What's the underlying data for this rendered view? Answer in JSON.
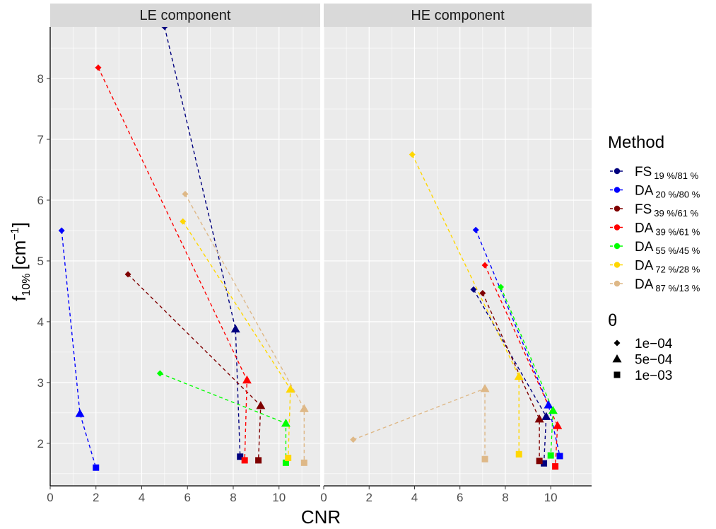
{
  "chart_data": {
    "type": "scatter",
    "x_label": "CNR",
    "y_label": "f",
    "y_label_sub": "10%",
    "y_label_unit": "[cm",
    "y_label_sup": "−1",
    "y_label_close": "]",
    "x_range": [
      0,
      11.8
    ],
    "y_range": [
      1.3,
      8.85
    ],
    "x_ticks": [
      0,
      2,
      4,
      6,
      8,
      10
    ],
    "y_ticks": [
      2,
      3,
      4,
      5,
      6,
      7,
      8
    ],
    "grid": true,
    "legend_placement": "right",
    "panels": [
      {
        "title": "LE component",
        "series": [
          {
            "method": "FS",
            "sub": "19 %/81 %",
            "color": "#00007f",
            "points": [
              {
                "theta": "1e-04",
                "x": 5.0,
                "y": 8.85
              },
              {
                "theta": "5e-04",
                "x": 8.1,
                "y": 3.88
              },
              {
                "theta": "1e-03",
                "x": 8.3,
                "y": 1.78
              }
            ]
          },
          {
            "method": "DA",
            "sub": "20 %/80 %",
            "color": "#0000ff",
            "points": [
              {
                "theta": "1e-04",
                "x": 0.5,
                "y": 5.5
              },
              {
                "theta": "5e-04",
                "x": 1.3,
                "y": 2.49
              },
              {
                "theta": "1e-03",
                "x": 2.0,
                "y": 1.6
              }
            ]
          },
          {
            "method": "FS",
            "sub": "39 %/61 %",
            "color": "#7f0000",
            "points": [
              {
                "theta": "1e-04",
                "x": 3.4,
                "y": 4.78
              },
              {
                "theta": "5e-04",
                "x": 9.2,
                "y": 2.62
              },
              {
                "theta": "1e-03",
                "x": 9.1,
                "y": 1.72
              }
            ]
          },
          {
            "method": "DA",
            "sub": "39 %/61 %",
            "color": "#ff0000",
            "points": [
              {
                "theta": "1e-04",
                "x": 2.1,
                "y": 8.18
              },
              {
                "theta": "5e-04",
                "x": 8.6,
                "y": 3.04
              },
              {
                "theta": "1e-03",
                "x": 8.5,
                "y": 1.72
              }
            ]
          },
          {
            "method": "DA",
            "sub": "55 %/45 %",
            "color": "#00ff00",
            "points": [
              {
                "theta": "1e-04",
                "x": 4.8,
                "y": 3.15
              },
              {
                "theta": "5e-04",
                "x": 10.3,
                "y": 2.33
              },
              {
                "theta": "1e-03",
                "x": 10.3,
                "y": 1.68
              }
            ]
          },
          {
            "method": "DA",
            "sub": "72 %/28 %",
            "color": "#ffd700",
            "points": [
              {
                "theta": "1e-04",
                "x": 5.8,
                "y": 5.65
              },
              {
                "theta": "5e-04",
                "x": 10.5,
                "y": 2.89
              },
              {
                "theta": "1e-03",
                "x": 10.4,
                "y": 1.76
              }
            ]
          },
          {
            "method": "DA",
            "sub": "87 %/13 %",
            "color": "#deb887",
            "points": [
              {
                "theta": "1e-04",
                "x": 5.9,
                "y": 6.1
              },
              {
                "theta": "5e-04",
                "x": 11.1,
                "y": 2.57
              },
              {
                "theta": "1e-03",
                "x": 11.1,
                "y": 1.68
              }
            ]
          }
        ]
      },
      {
        "title": "HE component",
        "series": [
          {
            "method": "FS",
            "sub": "19 %/81 %",
            "color": "#00007f",
            "points": [
              {
                "theta": "1e-04",
                "x": 6.6,
                "y": 4.53
              },
              {
                "theta": "5e-04",
                "x": 9.8,
                "y": 2.44
              },
              {
                "theta": "1e-03",
                "x": 9.7,
                "y": 1.67
              }
            ]
          },
          {
            "method": "DA",
            "sub": "20 %/80 %",
            "color": "#0000ff",
            "points": [
              {
                "theta": "1e-04",
                "x": 6.7,
                "y": 5.51
              },
              {
                "theta": "5e-04",
                "x": 9.9,
                "y": 2.63
              },
              {
                "theta": "1e-03",
                "x": 10.4,
                "y": 1.79
              }
            ]
          },
          {
            "method": "FS",
            "sub": "39 %/61 %",
            "color": "#7f0000",
            "points": [
              {
                "theta": "1e-04",
                "x": 7.0,
                "y": 4.47
              },
              {
                "theta": "5e-04",
                "x": 9.5,
                "y": 2.4
              },
              {
                "theta": "1e-03",
                "x": 9.5,
                "y": 1.71
              }
            ]
          },
          {
            "method": "DA",
            "sub": "39 %/61 %",
            "color": "#ff0000",
            "points": [
              {
                "theta": "1e-04",
                "x": 7.1,
                "y": 4.93
              },
              {
                "theta": "5e-04",
                "x": 10.3,
                "y": 2.29
              },
              {
                "theta": "1e-03",
                "x": 10.2,
                "y": 1.62
              }
            ]
          },
          {
            "method": "DA",
            "sub": "55 %/45 %",
            "color": "#00ff00",
            "points": [
              {
                "theta": "1e-04",
                "x": 7.8,
                "y": 4.57
              },
              {
                "theta": "5e-04",
                "x": 10.1,
                "y": 2.54
              },
              {
                "theta": "1e-03",
                "x": 10.0,
                "y": 1.8
              }
            ]
          },
          {
            "method": "DA",
            "sub": "72 %/28 %",
            "color": "#ffd700",
            "points": [
              {
                "theta": "1e-04",
                "x": 3.9,
                "y": 6.75
              },
              {
                "theta": "5e-04",
                "x": 8.6,
                "y": 3.1
              },
              {
                "theta": "1e-03",
                "x": 8.6,
                "y": 1.82
              }
            ]
          },
          {
            "method": "DA",
            "sub": "87 %/13 %",
            "color": "#deb887",
            "points": [
              {
                "theta": "1e-04",
                "x": 1.3,
                "y": 2.06
              },
              {
                "theta": "5e-04",
                "x": 7.1,
                "y": 2.9
              },
              {
                "theta": "1e-03",
                "x": 7.1,
                "y": 1.74
              }
            ]
          }
        ]
      }
    ],
    "legend": {
      "method_title": "Method",
      "theta_title": "θ",
      "theta_items": [
        {
          "label": "1e−04",
          "shape": "diamond"
        },
        {
          "label": "5e−04",
          "shape": "triangle"
        },
        {
          "label": "1e−03",
          "shape": "square"
        }
      ]
    }
  }
}
